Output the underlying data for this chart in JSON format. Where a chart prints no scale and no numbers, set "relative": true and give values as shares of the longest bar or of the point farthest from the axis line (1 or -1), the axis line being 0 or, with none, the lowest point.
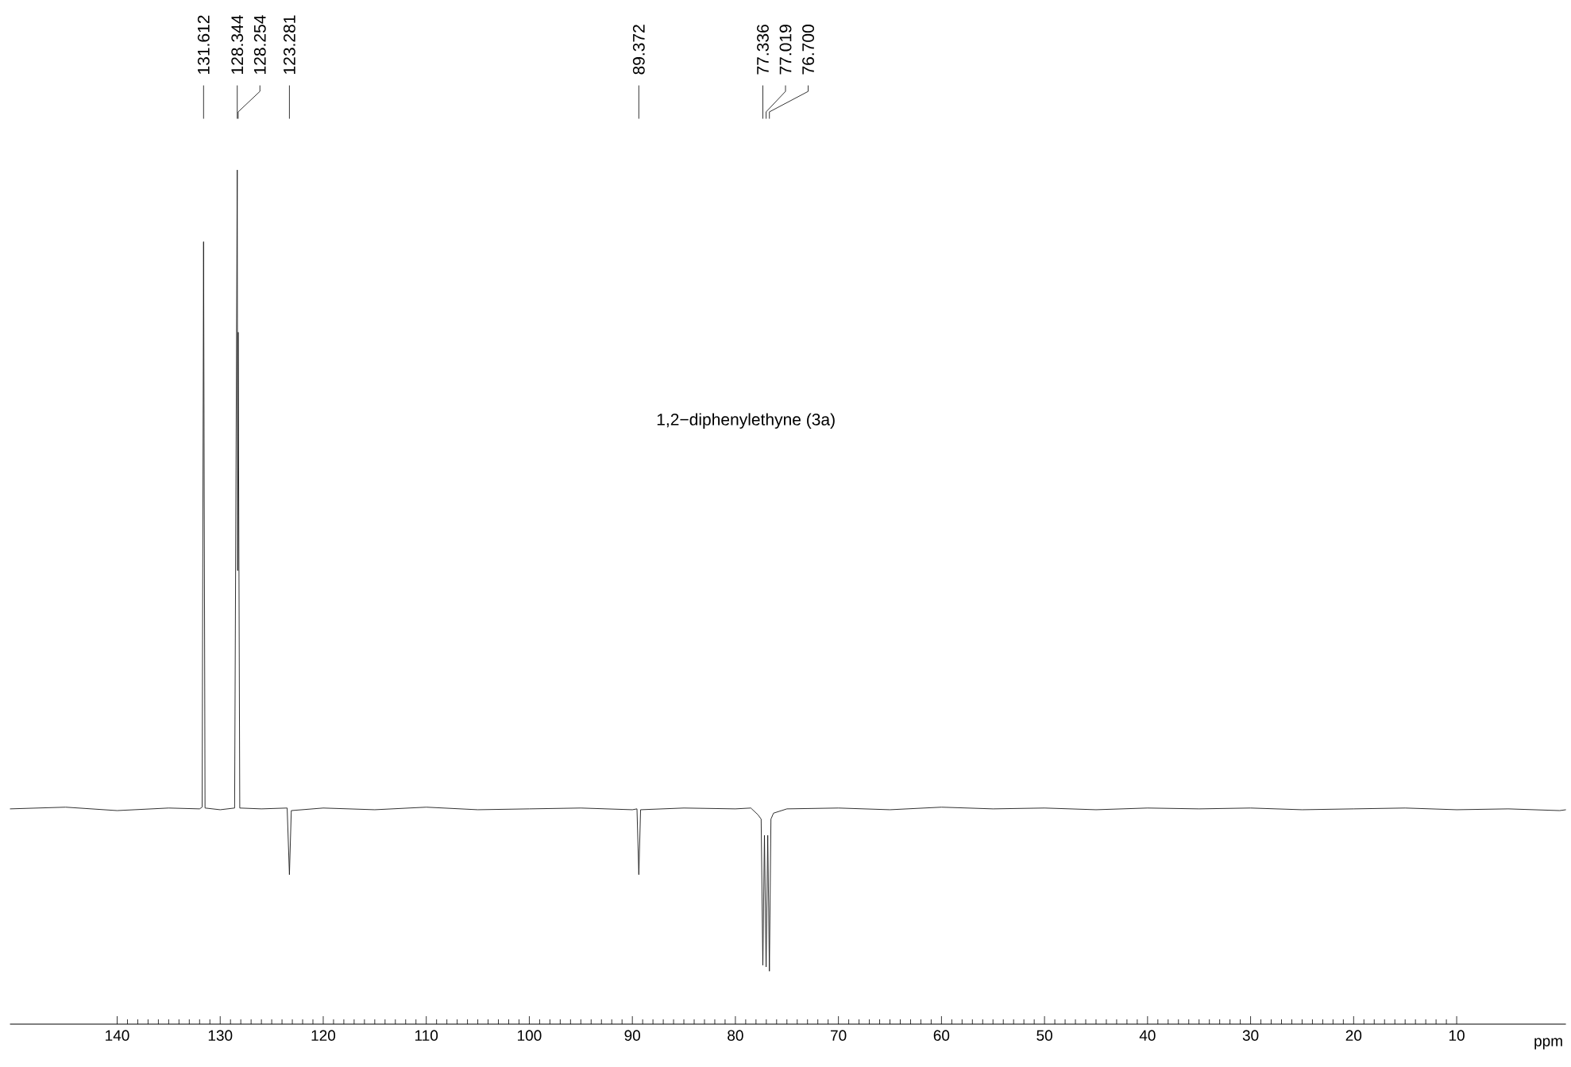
{
  "chart_data": {
    "type": "line",
    "relative": true,
    "color": "#1a1a1a",
    "xlabel": "ppm",
    "xlim": [
      150.4,
      -0.6
    ],
    "xticks": [
      140,
      130,
      120,
      110,
      100,
      90,
      80,
      70,
      60,
      50,
      40,
      30,
      20,
      10
    ],
    "x": [
      150.4,
      145,
      140,
      135,
      132.0,
      131.75,
      131.612,
      131.47,
      130,
      128.6,
      128.344,
      128.3,
      128.254,
      128.1,
      126,
      123.5,
      123.281,
      123.1,
      120,
      115,
      110,
      105,
      100,
      95,
      90,
      89.55,
      89.372,
      89.2,
      85,
      80,
      78.5,
      77.8,
      77.5,
      77.336,
      77.18,
      77.019,
      76.86,
      76.7,
      76.55,
      76.3,
      75,
      70,
      65,
      60,
      55,
      50,
      45,
      40,
      35,
      30,
      25,
      20,
      15,
      10,
      5,
      0,
      -0.6
    ],
    "values": [
      0.252,
      0.254,
      0.25,
      0.253,
      0.252,
      0.254,
      0.916,
      0.253,
      0.251,
      0.253,
      1.0,
      0.531,
      0.81,
      0.253,
      0.252,
      0.253,
      0.175,
      0.25,
      0.253,
      0.251,
      0.254,
      0.251,
      0.252,
      0.253,
      0.251,
      0.252,
      0.175,
      0.251,
      0.253,
      0.252,
      0.253,
      0.245,
      0.24,
      0.069,
      0.221,
      0.067,
      0.221,
      0.062,
      0.24,
      0.247,
      0.252,
      0.253,
      0.251,
      0.254,
      0.252,
      0.253,
      0.251,
      0.253,
      0.252,
      0.253,
      0.251,
      0.252,
      0.253,
      0.251,
      0.252,
      0.25,
      0.251
    ],
    "annotations": [
      {
        "text": "131.612",
        "x": 131.612
      },
      {
        "text": "128.344",
        "x": 128.344
      },
      {
        "text": "128.254",
        "x": 128.254
      },
      {
        "text": "123.281",
        "x": 123.281
      },
      {
        "text": "89.372",
        "x": 89.372
      },
      {
        "text": "77.336",
        "x": 77.336
      },
      {
        "text": "77.019",
        "x": 77.019
      },
      {
        "text": "76.700",
        "x": 76.7
      },
      "1,2−diphenylethyne (3a)"
    ]
  }
}
